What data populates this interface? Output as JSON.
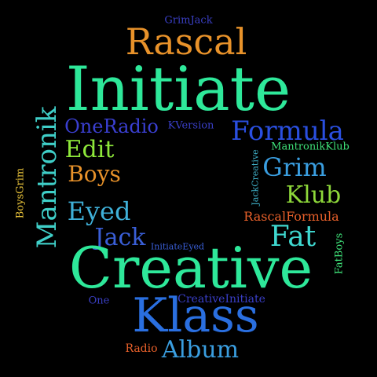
{
  "words": [
    {
      "id": "grimjack",
      "text": "GrimJack",
      "color": "#3a3fc4"
    },
    {
      "id": "rascal",
      "text": "Rascal",
      "color": "#e8922a"
    },
    {
      "id": "initiate",
      "text": "Initiate",
      "color": "#2ee89a"
    },
    {
      "id": "oneradio",
      "text": "OneRadio",
      "color": "#3a3fd0"
    },
    {
      "id": "kversion",
      "text": "KVersion",
      "color": "#3a3fc8"
    },
    {
      "id": "formula",
      "text": "Formula",
      "color": "#2a4fe0"
    },
    {
      "id": "mantronik",
      "text": "Mantronik",
      "color": "#3fcfc8"
    },
    {
      "id": "edit",
      "text": "Edit",
      "color": "#8ee83a"
    },
    {
      "id": "mantronikklub",
      "text": "MantronikKlub",
      "color": "#3ee078"
    },
    {
      "id": "jackcreative",
      "text": "JackCreative",
      "color": "#3fb0c8"
    },
    {
      "id": "grim",
      "text": "Grim",
      "color": "#3a9ee0"
    },
    {
      "id": "boys",
      "text": "Boys",
      "color": "#e8922a"
    },
    {
      "id": "boysgrim",
      "text": "BoysGrim",
      "color": "#e8c23a"
    },
    {
      "id": "klub",
      "text": "Klub",
      "color": "#8ed83a"
    },
    {
      "id": "eyed",
      "text": "Eyed",
      "color": "#3fb0d8"
    },
    {
      "id": "rascalformula",
      "text": "RascalFormula",
      "color": "#e8602a"
    },
    {
      "id": "fat",
      "text": "Fat",
      "color": "#3fd8d0"
    },
    {
      "id": "jack",
      "text": "Jack",
      "color": "#3a5fd8"
    },
    {
      "id": "initiateeyed",
      "text": "InitiateEyed",
      "color": "#3a5fd8"
    },
    {
      "id": "fatboys",
      "text": "FatBoys",
      "color": "#3ee078"
    },
    {
      "id": "creative",
      "text": "Creative",
      "color": "#2ee89a"
    },
    {
      "id": "one",
      "text": "One",
      "color": "#3a3fc4"
    },
    {
      "id": "creativeinitiate",
      "text": "CreativeInitiate",
      "color": "#3a3fc8"
    },
    {
      "id": "klass",
      "text": "Klass",
      "color": "#2a6fe0"
    },
    {
      "id": "radio",
      "text": "Radio",
      "color": "#e8602a"
    },
    {
      "id": "album",
      "text": "Album",
      "color": "#3a9ee0"
    }
  ]
}
